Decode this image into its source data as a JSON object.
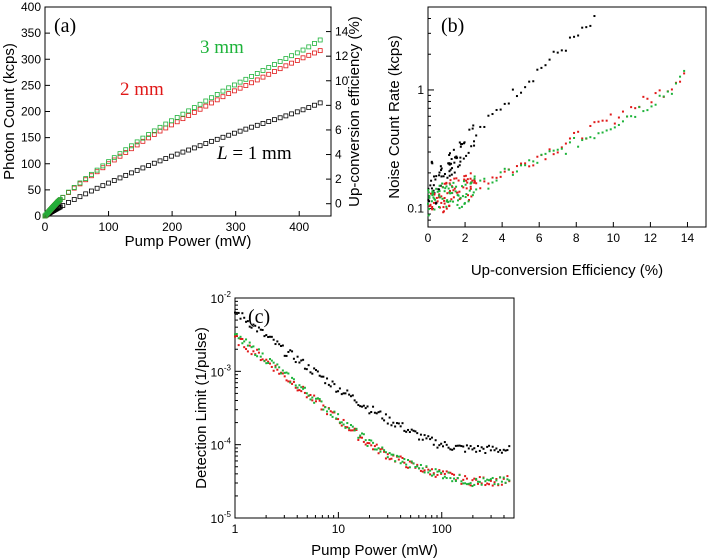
{
  "chart_data": [
    {
      "panel": "(a)",
      "type": "scatter",
      "xlabel": "Pump Power (mW)",
      "ylabel": "Photon Count (kcps)",
      "ylabel_right": "Up-conversion efficiency (%)",
      "xlim": [
        0,
        450
      ],
      "ylim": [
        0,
        400
      ],
      "ylim_right": [
        -1,
        16
      ],
      "xticks": [
        0,
        100,
        200,
        300,
        400
      ],
      "yticks": [
        0,
        50,
        100,
        150,
        200,
        250,
        300,
        350,
        400
      ],
      "yticks_right": [
        0,
        2,
        4,
        6,
        8,
        10,
        12,
        14
      ],
      "annotations": [
        {
          "text": "3 mm",
          "color": "#1db33a"
        },
        {
          "text": "2 mm",
          "color": "#e01818"
        },
        {
          "text_italic": "L",
          "text": " = 1 mm",
          "color": "#000000"
        }
      ],
      "series": [
        {
          "name": "L = 1 mm",
          "color": "#000000",
          "marker": "open-square",
          "points": [
            [
              0,
              0
            ],
            [
              10,
              8
            ],
            [
              20,
              15
            ],
            [
              40,
              28
            ],
            [
              60,
              40
            ],
            [
              80,
              52
            ],
            [
              100,
              63
            ],
            [
              120,
              74
            ],
            [
              150,
              90
            ],
            [
              180,
              105
            ],
            [
              200,
              115
            ],
            [
              230,
              128
            ],
            [
              260,
              142
            ],
            [
              290,
              155
            ],
            [
              320,
              168
            ],
            [
              350,
              180
            ],
            [
              380,
              192
            ],
            [
              410,
              205
            ],
            [
              440,
              220
            ]
          ]
        },
        {
          "name": "2 mm",
          "color": "#e01818",
          "marker": "open-square",
          "points": [
            [
              0,
              0
            ],
            [
              10,
              14
            ],
            [
              20,
              27
            ],
            [
              40,
              48
            ],
            [
              60,
              66
            ],
            [
              80,
              83
            ],
            [
              100,
              100
            ],
            [
              120,
              116
            ],
            [
              150,
              140
            ],
            [
              180,
              162
            ],
            [
              200,
              175
            ],
            [
              230,
              195
            ],
            [
              260,
              215
            ],
            [
              290,
              235
            ],
            [
              320,
              252
            ],
            [
              350,
              270
            ],
            [
              380,
              288
            ],
            [
              410,
              305
            ],
            [
              440,
              320
            ]
          ]
        },
        {
          "name": "3 mm",
          "color": "#1db33a",
          "marker": "open-square",
          "points": [
            [
              0,
              0
            ],
            [
              10,
              14
            ],
            [
              20,
              27
            ],
            [
              40,
              49
            ],
            [
              60,
              68
            ],
            [
              80,
              86
            ],
            [
              100,
              104
            ],
            [
              120,
              121
            ],
            [
              150,
              146
            ],
            [
              180,
              169
            ],
            [
              200,
              183
            ],
            [
              230,
              204
            ],
            [
              260,
              225
            ],
            [
              290,
              246
            ],
            [
              320,
              264
            ],
            [
              350,
              283
            ],
            [
              380,
              302
            ],
            [
              410,
              320
            ],
            [
              440,
              342
            ]
          ]
        }
      ]
    },
    {
      "panel": "(b)",
      "type": "scatter",
      "xlabel": "Up-conversion Efficiency (%)",
      "ylabel": "Noise Count Rate (kcps)",
      "xlim": [
        0,
        15
      ],
      "ylim_log": [
        0.07,
        5
      ],
      "xticks": [
        0,
        2,
        4,
        6,
        8,
        10,
        12,
        14
      ],
      "ytick_labels": [
        "0.1",
        "1"
      ],
      "series": [
        {
          "name": "L = 1 mm",
          "color": "#000000",
          "marker": "dot",
          "points": [
            [
              0,
              0.12
            ],
            [
              0.1,
              0.15
            ],
            [
              0.2,
              0.2
            ],
            [
              0.3,
              0.16
            ],
            [
              0.5,
              0.14
            ],
            [
              0.7,
              0.18
            ],
            [
              1,
              0.22
            ],
            [
              1.3,
              0.25
            ],
            [
              1.6,
              0.28
            ],
            [
              2,
              0.33
            ],
            [
              2.5,
              0.4
            ],
            [
              3,
              0.5
            ],
            [
              3.5,
              0.6
            ],
            [
              4,
              0.75
            ],
            [
              4.5,
              0.9
            ],
            [
              5,
              1.05
            ],
            [
              5.5,
              1.25
            ],
            [
              6,
              1.5
            ],
            [
              6.5,
              1.75
            ],
            [
              7,
              2.05
            ],
            [
              7.5,
              2.4
            ],
            [
              8,
              2.8
            ],
            [
              8.5,
              3.2
            ],
            [
              9,
              3.8
            ]
          ]
        },
        {
          "name": "2 mm",
          "color": "#e01818",
          "marker": "dot",
          "points": [
            [
              0,
              0.1
            ],
            [
              0.2,
              0.12
            ],
            [
              0.5,
              0.11
            ],
            [
              1,
              0.13
            ],
            [
              1.5,
              0.14
            ],
            [
              2,
              0.15
            ],
            [
              2.5,
              0.16
            ],
            [
              3,
              0.17
            ],
            [
              4,
              0.2
            ],
            [
              5,
              0.23
            ],
            [
              6,
              0.28
            ],
            [
              7,
              0.33
            ],
            [
              8,
              0.4
            ],
            [
              9,
              0.48
            ],
            [
              10,
              0.58
            ],
            [
              11,
              0.7
            ],
            [
              12,
              0.85
            ],
            [
              13,
              1.05
            ],
            [
              13.5,
              1.25
            ],
            [
              14,
              1.6
            ]
          ]
        },
        {
          "name": "3 mm",
          "color": "#1db33a",
          "marker": "dot",
          "points": [
            [
              0,
              0.11
            ],
            [
              0.2,
              0.14
            ],
            [
              0.5,
              0.12
            ],
            [
              1,
              0.13
            ],
            [
              1.5,
              0.13
            ],
            [
              2,
              0.14
            ],
            [
              2.5,
              0.15
            ],
            [
              3,
              0.16
            ],
            [
              4,
              0.19
            ],
            [
              5,
              0.22
            ],
            [
              6,
              0.26
            ],
            [
              7,
              0.3
            ],
            [
              8,
              0.36
            ],
            [
              9,
              0.43
            ],
            [
              10,
              0.52
            ],
            [
              11,
              0.63
            ],
            [
              12,
              0.78
            ],
            [
              13,
              0.98
            ],
            [
              13.5,
              1.15
            ],
            [
              14,
              1.4
            ]
          ]
        }
      ]
    },
    {
      "panel": "(c)",
      "type": "scatter",
      "xlabel": "Pump Power (mW)",
      "ylabel": "Detection Limit (1/pulse)",
      "xlim_log": [
        1,
        500
      ],
      "ylim_log": [
        1e-05,
        0.01
      ],
      "xtick_labels": [
        "1",
        "10",
        "100"
      ],
      "ytick_labels": [
        {
          "base": "10",
          "exp": "-5"
        },
        {
          "base": "10",
          "exp": "-4"
        },
        {
          "base": "10",
          "exp": "-3"
        },
        {
          "base": "10",
          "exp": "-2"
        }
      ],
      "series": [
        {
          "name": "L = 1 mm",
          "color": "#000000",
          "marker": "dot",
          "points": [
            [
              1,
              0.0065
            ],
            [
              1.5,
              0.0042
            ],
            [
              2,
              0.003
            ],
            [
              3,
              0.0019
            ],
            [
              5,
              0.00115
            ],
            [
              7,
              0.00082
            ],
            [
              10,
              0.00058
            ],
            [
              15,
              0.0004
            ],
            [
              20,
              0.00031
            ],
            [
              30,
              0.00022
            ],
            [
              50,
              0.00015
            ],
            [
              70,
              0.000118
            ],
            [
              100,
              0.0001
            ],
            [
              150,
              9e-05
            ],
            [
              200,
              8.8e-05
            ],
            [
              300,
              8.6e-05
            ],
            [
              450,
              8.5e-05
            ]
          ]
        },
        {
          "name": "2 mm",
          "color": "#e01818",
          "marker": "dot",
          "points": [
            [
              1,
              0.0028
            ],
            [
              1.5,
              0.0019
            ],
            [
              2,
              0.0014
            ],
            [
              3,
              0.00085
            ],
            [
              5,
              0.00048
            ],
            [
              7,
              0.00033
            ],
            [
              10,
              0.00022
            ],
            [
              15,
              0.00014
            ],
            [
              20,
              0.0001
            ],
            [
              30,
              7.2e-05
            ],
            [
              50,
              5.2e-05
            ],
            [
              70,
              4.5e-05
            ],
            [
              100,
              4e-05
            ],
            [
              150,
              3.4e-05
            ],
            [
              200,
              3.2e-05
            ],
            [
              300,
              3.2e-05
            ],
            [
              450,
              3.3e-05
            ]
          ]
        },
        {
          "name": "3 mm",
          "color": "#1db33a",
          "marker": "dot",
          "points": [
            [
              1,
              0.003
            ],
            [
              1.5,
              0.002
            ],
            [
              2,
              0.0015
            ],
            [
              3,
              0.0009
            ],
            [
              5,
              0.0005
            ],
            [
              7,
              0.00035
            ],
            [
              10,
              0.00023
            ],
            [
              15,
              0.000145
            ],
            [
              20,
              0.000105
            ],
            [
              30,
              7.3e-05
            ],
            [
              50,
              5.3e-05
            ],
            [
              70,
              4.6e-05
            ],
            [
              100,
              4e-05
            ],
            [
              150,
              3.4e-05
            ],
            [
              200,
              3.1e-05
            ],
            [
              300,
              3.1e-05
            ],
            [
              450,
              3.2e-05
            ]
          ]
        }
      ]
    }
  ]
}
